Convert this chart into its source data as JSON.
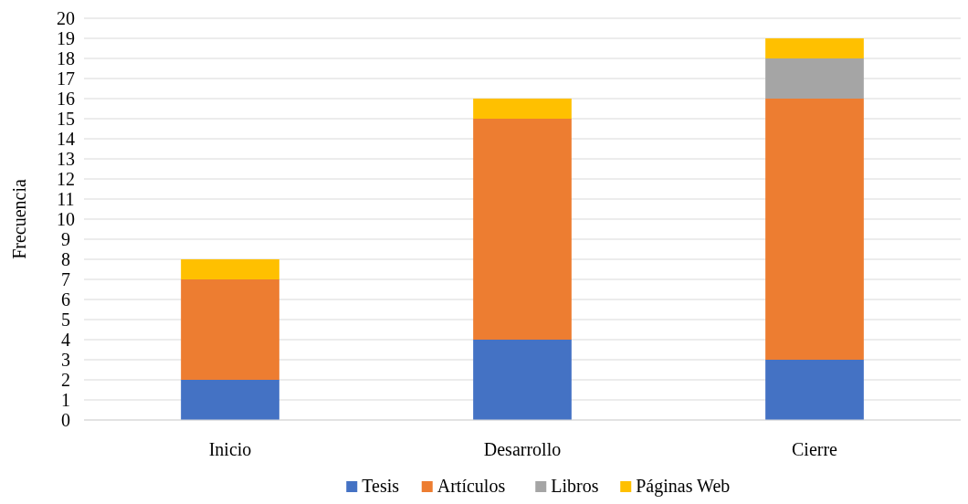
{
  "chart_data": {
    "type": "bar",
    "stacked": true,
    "ylabel": "Frecuencia",
    "categories": [
      "Inicio",
      "Desarrollo",
      "Cierre"
    ],
    "series": [
      {
        "name": "Tesis",
        "color": "#4472c4",
        "values": [
          2,
          4,
          3
        ]
      },
      {
        "name": "Artículos",
        "color": "#ed7d31",
        "values": [
          5,
          11,
          13
        ]
      },
      {
        "name": "Libros",
        "color": "#a5a5a5",
        "values": [
          0,
          0,
          2
        ]
      },
      {
        "name": "Páginas Web",
        "color": "#ffc000",
        "values": [
          1,
          1,
          1
        ]
      }
    ],
    "ylim": [
      0,
      20
    ],
    "yticks": [
      0,
      1,
      2,
      3,
      4,
      5,
      6,
      7,
      8,
      9,
      10,
      11,
      12,
      13,
      14,
      15,
      16,
      17,
      18,
      19,
      20
    ],
    "grid": "y",
    "legend": "bottom"
  }
}
